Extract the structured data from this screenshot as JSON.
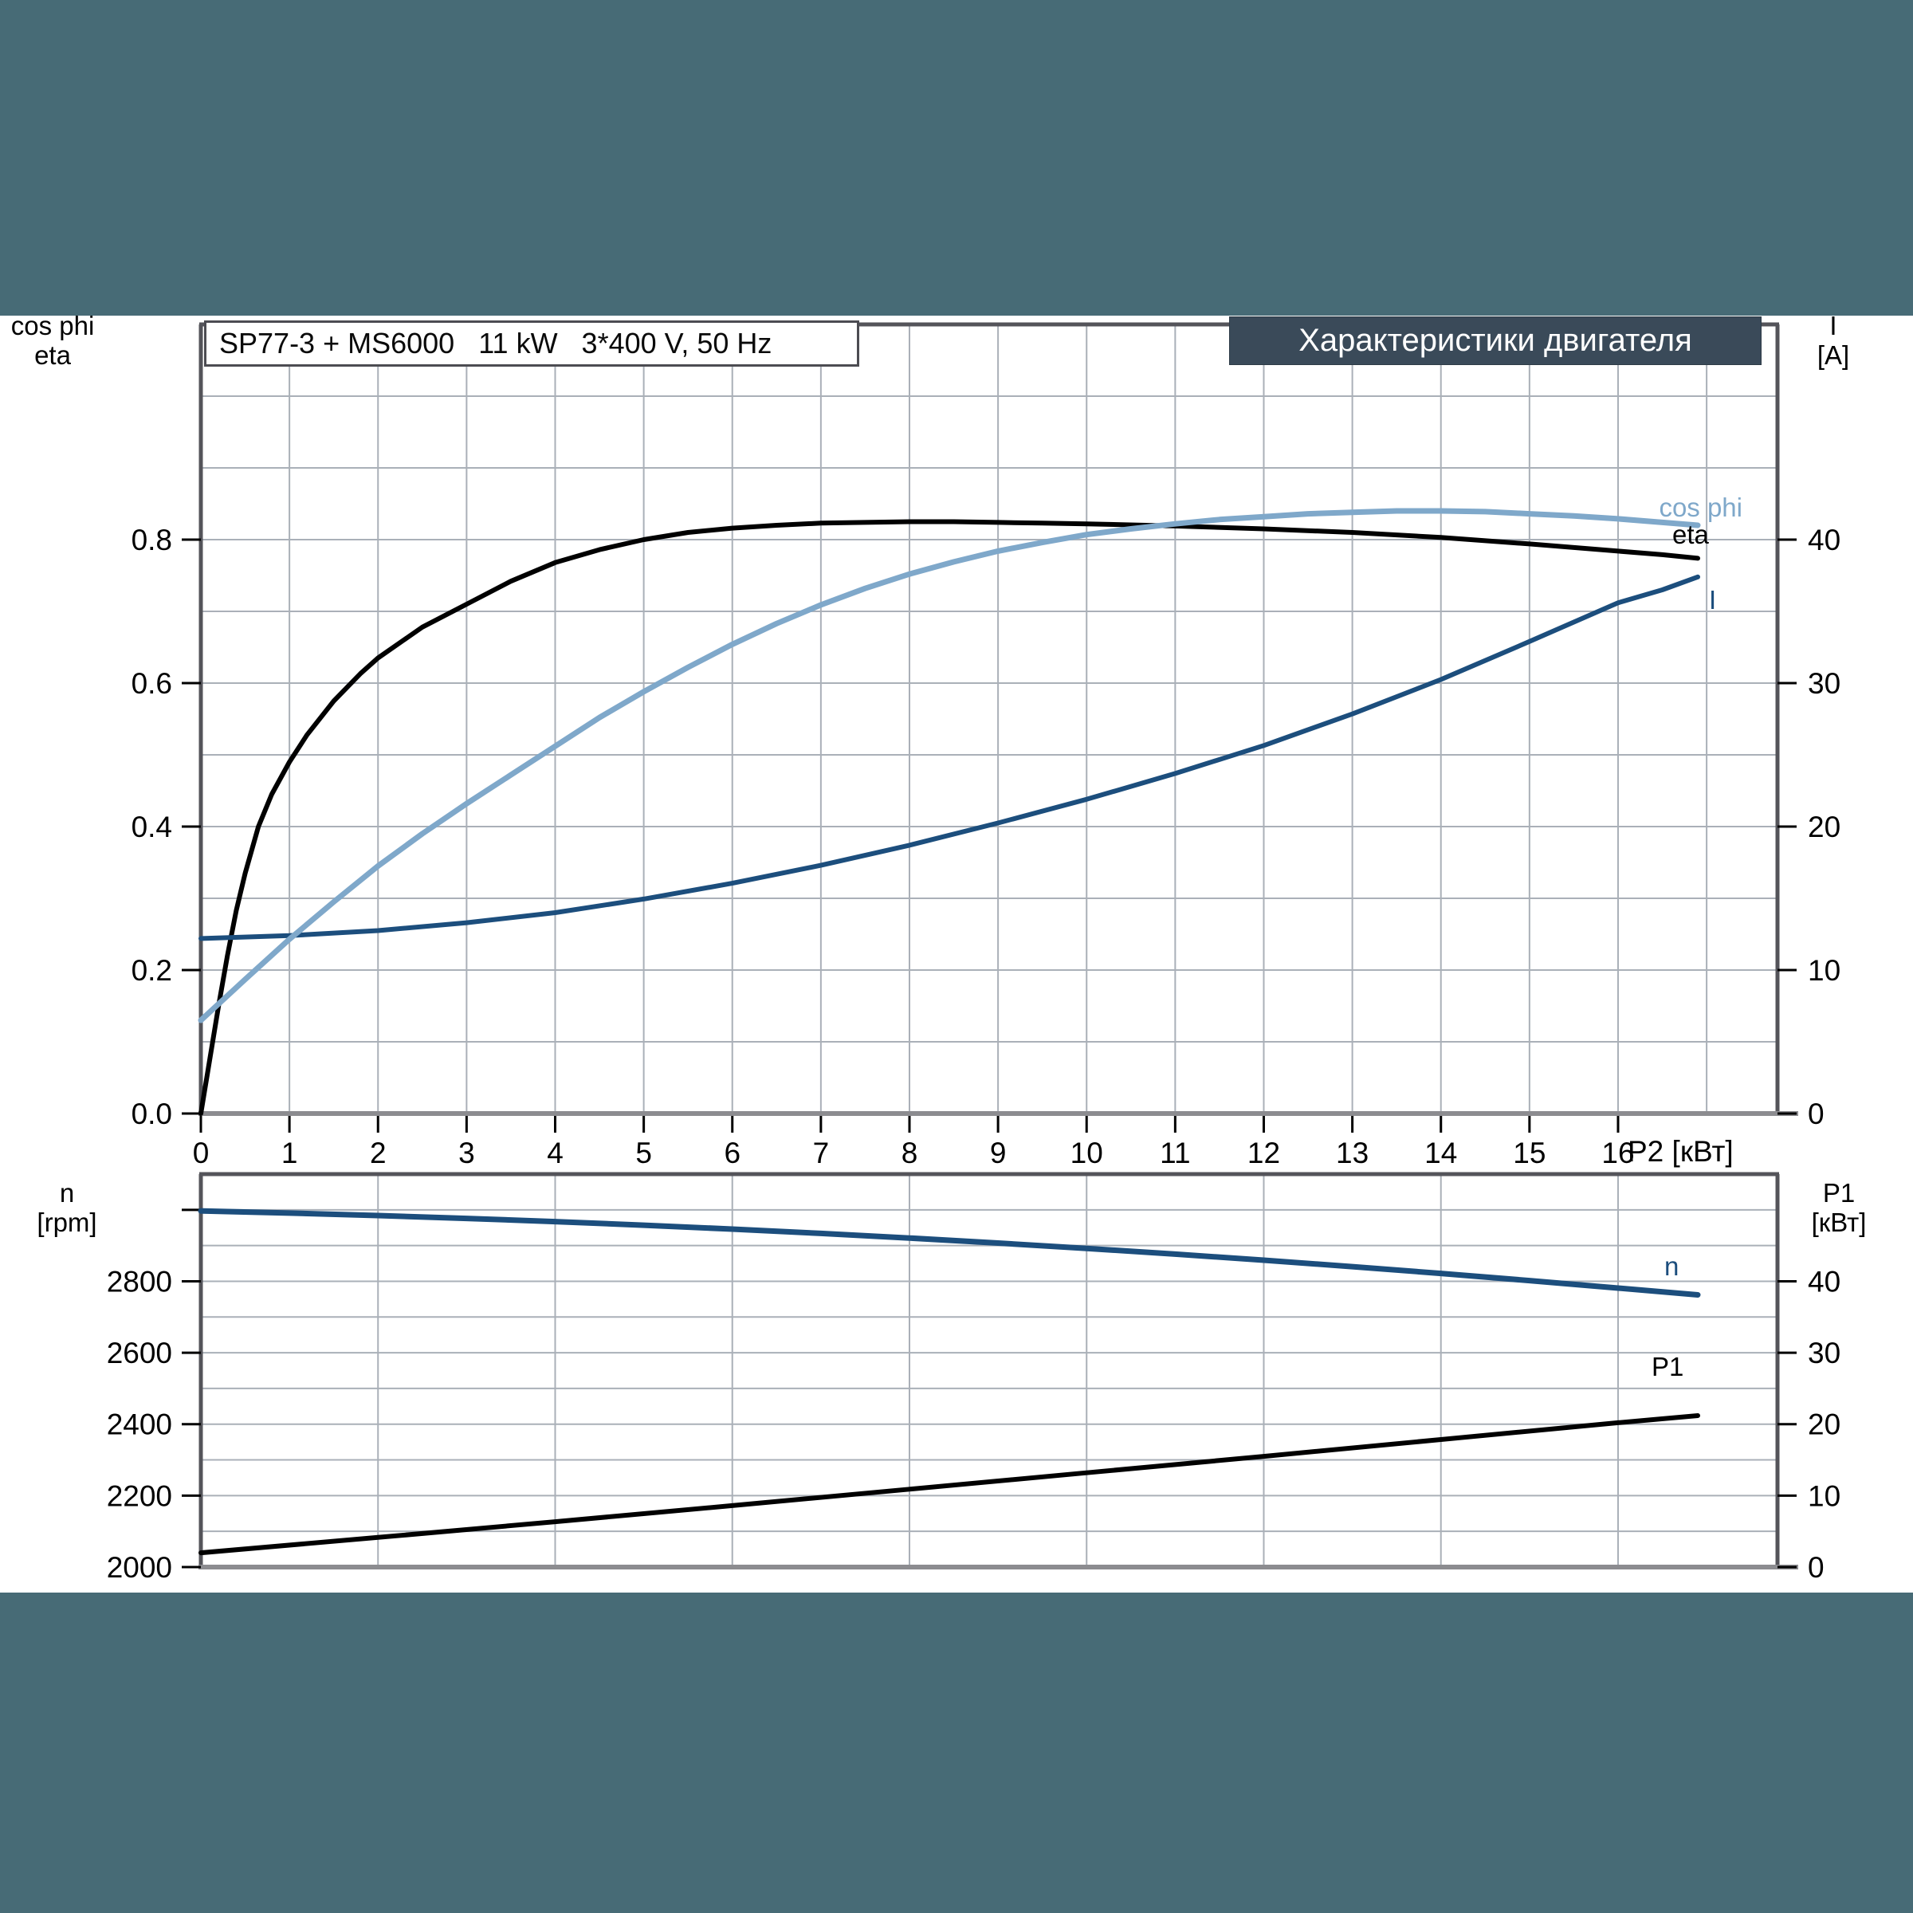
{
  "titles": {
    "spec": "SP77-3 + MS6000   11 kW   3*400 V, 50 Hz",
    "ru": "Характеристики двигателя"
  },
  "axis_headers": {
    "top_left": [
      "cos phi",
      "eta"
    ],
    "top_right": [
      "I",
      "[A]"
    ],
    "bottom_left": [
      "n",
      "[rpm]"
    ],
    "bottom_right": [
      "P1",
      "[кВт]"
    ]
  },
  "colors": {
    "background_band": "#476b76",
    "title_box_bg": "#3a4a59",
    "curve_light_blue": "#7fa8ca",
    "curve_dark_blue": "#1c4e7d",
    "curve_black": "#000000",
    "gridline": "#aab0b8",
    "border": "#54545a",
    "axis_line": "#8c8c90"
  },
  "chart_data": [
    {
      "id": "motor-top",
      "type": "line",
      "title": "Характеристики двигателя",
      "x_axis": {
        "label": "P2",
        "unit_label": "P2 [кВт]",
        "min": 0,
        "max": 17.8,
        "gridline_step": 1,
        "tick_values": [
          0,
          1,
          2,
          3,
          4,
          5,
          6,
          7,
          8,
          9,
          10,
          11,
          12,
          13,
          14,
          15,
          16
        ],
        "tick_labels": [
          "0",
          "1",
          "2",
          "3",
          "4",
          "5",
          "6",
          "7",
          "8",
          "9",
          "10",
          "11",
          "12",
          "13",
          "14",
          "15",
          "16"
        ]
      },
      "left_axis": {
        "name": "cos phi / eta",
        "min": 0,
        "max": 1.1,
        "gridline_step": 0.1,
        "tick_values": [
          0,
          0.2,
          0.4,
          0.6,
          0.8
        ],
        "tick_labels": [
          "0.0",
          "0.2",
          "0.4",
          "0.6",
          "0.8"
        ]
      },
      "right_axis": {
        "name": "I [A]",
        "min": 0,
        "max": 55,
        "tick_values": [
          0,
          10,
          20,
          30,
          40
        ],
        "tick_labels": [
          "0",
          "10",
          "20",
          "30",
          "40"
        ]
      },
      "series": [
        {
          "name": "eta",
          "axis": "left",
          "color": "#000000",
          "width": 6,
          "points": [
            [
              0,
              0
            ],
            [
              0.1,
              0.075
            ],
            [
              0.2,
              0.15
            ],
            [
              0.3,
              0.22
            ],
            [
              0.4,
              0.283
            ],
            [
              0.5,
              0.335
            ],
            [
              0.65,
              0.4
            ],
            [
              0.8,
              0.445
            ],
            [
              1.0,
              0.49
            ],
            [
              1.2,
              0.528
            ],
            [
              1.5,
              0.575
            ],
            [
              1.8,
              0.613
            ],
            [
              2.0,
              0.635
            ],
            [
              2.5,
              0.678
            ],
            [
              3.0,
              0.71
            ],
            [
              3.5,
              0.742
            ],
            [
              4.0,
              0.768
            ],
            [
              4.5,
              0.786
            ],
            [
              5.0,
              0.8
            ],
            [
              5.5,
              0.81
            ],
            [
              6.0,
              0.816
            ],
            [
              6.5,
              0.82
            ],
            [
              7.0,
              0.823
            ],
            [
              7.5,
              0.824
            ],
            [
              8.0,
              0.825
            ],
            [
              8.5,
              0.825
            ],
            [
              9.0,
              0.824
            ],
            [
              9.5,
              0.823
            ],
            [
              10,
              0.822
            ],
            [
              11,
              0.819
            ],
            [
              12,
              0.815
            ],
            [
              13,
              0.81
            ],
            [
              14,
              0.803
            ],
            [
              15,
              0.794
            ],
            [
              16,
              0.784
            ],
            [
              16.5,
              0.779
            ],
            [
              16.9,
              0.774
            ]
          ]
        },
        {
          "name": "I",
          "axis": "right",
          "color": "#1c4e7d",
          "width": 6,
          "points": [
            [
              0,
              12.2
            ],
            [
              1,
              12.4
            ],
            [
              2,
              12.75
            ],
            [
              3,
              13.3
            ],
            [
              4,
              14.0
            ],
            [
              5,
              14.95
            ],
            [
              6,
              16.05
            ],
            [
              7,
              17.3
            ],
            [
              8,
              18.7
            ],
            [
              9,
              20.25
            ],
            [
              10,
              21.9
            ],
            [
              11,
              23.7
            ],
            [
              12,
              25.65
            ],
            [
              13,
              27.85
            ],
            [
              14,
              30.25
            ],
            [
              15,
              32.9
            ],
            [
              16,
              35.6
            ],
            [
              16.5,
              36.5
            ],
            [
              16.9,
              37.4
            ]
          ]
        },
        {
          "name": "cos phi",
          "axis": "left",
          "color": "#7fa8ca",
          "width": 7,
          "points": [
            [
              0,
              0.13
            ],
            [
              0.5,
              0.187
            ],
            [
              1,
              0.243
            ],
            [
              1.5,
              0.295
            ],
            [
              2,
              0.345
            ],
            [
              2.5,
              0.39
            ],
            [
              3,
              0.432
            ],
            [
              3.5,
              0.472
            ],
            [
              4,
              0.512
            ],
            [
              4.5,
              0.552
            ],
            [
              5,
              0.588
            ],
            [
              5.5,
              0.622
            ],
            [
              6,
              0.654
            ],
            [
              6.5,
              0.683
            ],
            [
              7,
              0.709
            ],
            [
              7.5,
              0.732
            ],
            [
              8,
              0.752
            ],
            [
              8.5,
              0.769
            ],
            [
              9,
              0.784
            ],
            [
              9.5,
              0.796
            ],
            [
              10,
              0.807
            ],
            [
              10.5,
              0.815
            ],
            [
              11,
              0.822
            ],
            [
              11.5,
              0.828
            ],
            [
              12,
              0.832
            ],
            [
              12.5,
              0.836
            ],
            [
              13,
              0.838
            ],
            [
              13.5,
              0.84
            ],
            [
              14,
              0.84
            ],
            [
              14.5,
              0.839
            ],
            [
              15,
              0.836
            ],
            [
              15.5,
              0.833
            ],
            [
              16,
              0.829
            ],
            [
              16.5,
              0.824
            ],
            [
              16.9,
              0.82
            ]
          ]
        }
      ]
    },
    {
      "id": "motor-bottom",
      "type": "line",
      "x_axis": {
        "label": "P2",
        "min": 0,
        "max": 17.8,
        "gridline_step": 2,
        "tick_values": [],
        "tick_labels": []
      },
      "left_axis": {
        "name": "n [rpm]",
        "min": 2000,
        "max": 3100,
        "tick_values": [
          2000,
          2200,
          2400,
          2600,
          2800,
          3000
        ],
        "tick_labels": [
          "2000",
          "2200",
          "2400",
          "2600",
          "2800",
          ""
        ]
      },
      "right_axis": {
        "name": "P1 [кВт]",
        "min": 0,
        "max": 55,
        "gridline_step": 5,
        "tick_values": [
          0,
          10,
          20,
          30,
          40
        ],
        "tick_labels": [
          "0",
          "10",
          "20",
          "30",
          "40"
        ]
      },
      "series": [
        {
          "name": "n",
          "axis": "left",
          "color": "#1c4e7d",
          "width": 7,
          "points": [
            [
              0,
              2997
            ],
            [
              1,
              2991
            ],
            [
              2,
              2984
            ],
            [
              3,
              2976
            ],
            [
              4,
              2967
            ],
            [
              5,
              2957
            ],
            [
              6,
              2946
            ],
            [
              7,
              2934
            ],
            [
              8,
              2921
            ],
            [
              9,
              2907
            ],
            [
              10,
              2892
            ],
            [
              11,
              2876
            ],
            [
              12,
              2859
            ],
            [
              13,
              2841
            ],
            [
              14,
              2822
            ],
            [
              15,
              2802
            ],
            [
              16,
              2781
            ],
            [
              16.9,
              2762
            ]
          ]
        },
        {
          "name": "P1",
          "axis": "right",
          "color": "#000000",
          "width": 6,
          "points": [
            [
              0,
              2.0
            ],
            [
              2,
              4.15
            ],
            [
              4,
              6.35
            ],
            [
              6,
              8.6
            ],
            [
              8,
              10.9
            ],
            [
              10,
              13.2
            ],
            [
              12,
              15.5
            ],
            [
              14,
              17.85
            ],
            [
              16,
              20.2
            ],
            [
              16.9,
              21.2
            ]
          ]
        }
      ]
    }
  ]
}
